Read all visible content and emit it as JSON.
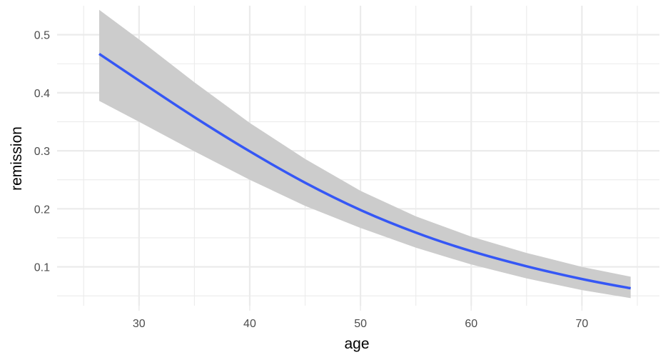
{
  "chart_data": {
    "type": "line",
    "xlabel": "age",
    "ylabel": "remission",
    "xlim": [
      22.6,
      77.0
    ],
    "ylim": [
      0.033,
      0.55
    ],
    "x_ticks": [
      30,
      40,
      50,
      60,
      70
    ],
    "y_ticks": [
      0.1,
      0.2,
      0.3,
      0.4,
      0.5
    ],
    "x_tick_labels": [
      "30",
      "40",
      "50",
      "60",
      "70"
    ],
    "y_tick_labels": [
      "0.1",
      "0.2",
      "0.3",
      "0.4",
      "0.5"
    ],
    "grid": true,
    "colors": {
      "line": "#3557f5",
      "band": "#cccccc",
      "grid": "#ebebeb"
    },
    "series": [
      {
        "x": [
          26.4,
          30,
          35,
          40,
          45,
          50,
          55,
          60,
          65,
          70,
          74.4
        ],
        "y": [
          0.467,
          0.421,
          0.358,
          0.299,
          0.245,
          0.198,
          0.159,
          0.127,
          0.101,
          0.079,
          0.063
        ],
        "lower": [
          0.386,
          0.35,
          0.299,
          0.25,
          0.205,
          0.167,
          0.133,
          0.104,
          0.08,
          0.06,
          0.046
        ],
        "upper": [
          0.543,
          0.492,
          0.418,
          0.348,
          0.286,
          0.231,
          0.187,
          0.152,
          0.124,
          0.1,
          0.083
        ]
      }
    ]
  }
}
